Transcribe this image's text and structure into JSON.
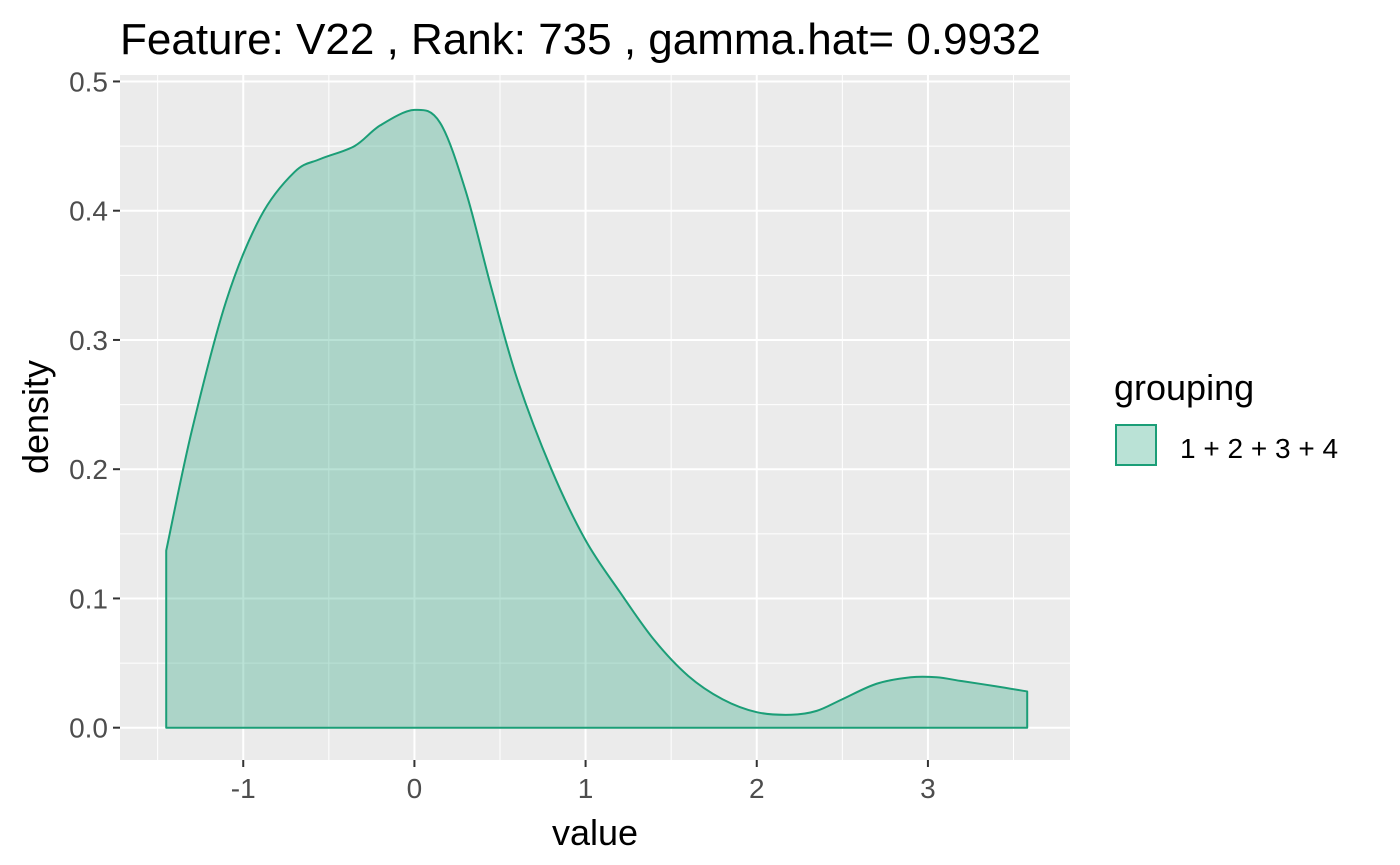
{
  "chart_data": {
    "type": "area",
    "title": "Feature: V22 , Rank: 735 , gamma.hat= 0.9932",
    "xlabel": "value",
    "ylabel": "density",
    "xlim": [
      -1.72,
      3.83
    ],
    "ylim": [
      -0.025,
      0.505
    ],
    "x_ticks": [
      -1,
      0,
      1,
      2,
      3
    ],
    "x_tick_labels": [
      "-1",
      "0",
      "1",
      "2",
      "3"
    ],
    "y_ticks": [
      0.0,
      0.1,
      0.2,
      0.3,
      0.4,
      0.5
    ],
    "y_tick_labels": [
      "0.0",
      "0.1",
      "0.2",
      "0.3",
      "0.4",
      "0.5"
    ],
    "grid": true,
    "legend_position": "right",
    "legend_title": "grouping",
    "series": [
      {
        "name": "1 + 2 + 3 + 4",
        "fill": "#1b9e77",
        "fill_opacity": 0.3,
        "stroke": "#1b9e77",
        "x": [
          -1.45,
          -1.45,
          -1.3,
          -1.1,
          -0.9,
          -0.7,
          -0.55,
          -0.35,
          -0.2,
          0.0,
          0.15,
          0.3,
          0.45,
          0.6,
          0.8,
          1.0,
          1.2,
          1.4,
          1.6,
          1.8,
          2.0,
          2.2,
          2.35,
          2.5,
          2.7,
          2.9,
          3.05,
          3.2,
          3.4,
          3.58,
          3.58
        ],
        "y": [
          0.0,
          0.137,
          0.23,
          0.33,
          0.395,
          0.43,
          0.44,
          0.45,
          0.466,
          0.478,
          0.468,
          0.415,
          0.34,
          0.27,
          0.2,
          0.145,
          0.105,
          0.068,
          0.04,
          0.022,
          0.012,
          0.01,
          0.013,
          0.022,
          0.034,
          0.039,
          0.039,
          0.036,
          0.032,
          0.028,
          0.0
        ]
      }
    ]
  }
}
